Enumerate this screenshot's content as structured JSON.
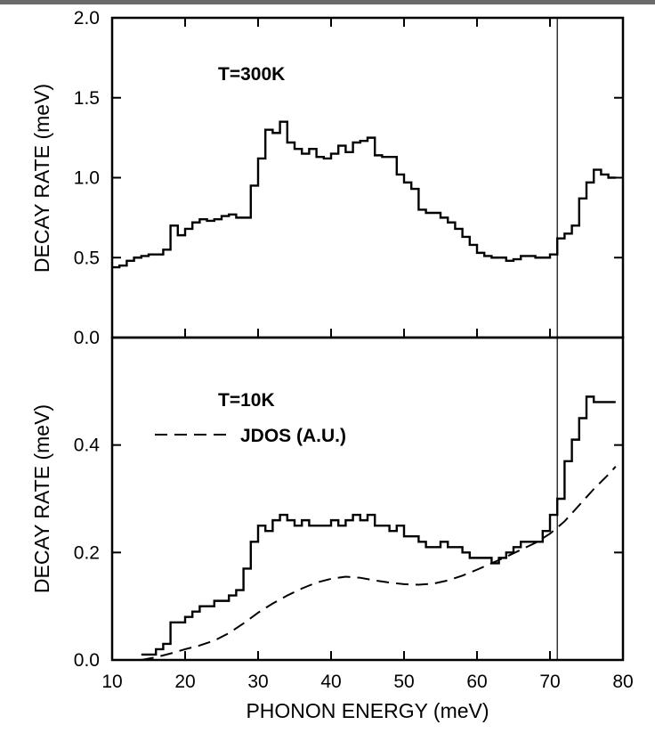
{
  "chart_data": [
    {
      "type": "line",
      "panel": "top",
      "annotation": "T=300K",
      "ylabel": "DECAY RATE (meV)",
      "xlabel": "",
      "xlim": [
        10,
        80
      ],
      "ylim": [
        0.0,
        2.0
      ],
      "yticks": [
        "0.0",
        "0.5",
        "1.0",
        "1.5",
        "2.0"
      ],
      "marker_line_x": 71,
      "series": [
        {
          "style": "step",
          "x": [
            10,
            11,
            12,
            13,
            14,
            15,
            16,
            17,
            18,
            19,
            20,
            21,
            22,
            23,
            24,
            25,
            26,
            27,
            28,
            29,
            30,
            31,
            32,
            33,
            34,
            35,
            36,
            37,
            38,
            39,
            40,
            41,
            42,
            43,
            44,
            45,
            46,
            47,
            48,
            49,
            50,
            51,
            52,
            53,
            54,
            55,
            56,
            57,
            58,
            59,
            60,
            61,
            62,
            63,
            64,
            65,
            66,
            67,
            68,
            69,
            70,
            71,
            72,
            73,
            74,
            75,
            76,
            77,
            78
          ],
          "y": [
            0.44,
            0.45,
            0.48,
            0.5,
            0.51,
            0.52,
            0.52,
            0.55,
            0.7,
            0.64,
            0.68,
            0.72,
            0.74,
            0.73,
            0.74,
            0.76,
            0.77,
            0.75,
            0.75,
            0.95,
            1.12,
            1.3,
            1.28,
            1.35,
            1.22,
            1.18,
            1.15,
            1.18,
            1.13,
            1.12,
            1.15,
            1.2,
            1.16,
            1.22,
            1.23,
            1.25,
            1.14,
            1.13,
            1.13,
            1.02,
            0.97,
            0.93,
            0.8,
            0.78,
            0.78,
            0.75,
            0.72,
            0.68,
            0.63,
            0.58,
            0.53,
            0.51,
            0.5,
            0.5,
            0.48,
            0.49,
            0.51,
            0.51,
            0.5,
            0.5,
            0.52,
            0.62,
            0.65,
            0.7,
            0.87,
            0.97,
            1.05,
            1.02,
            1.0
          ]
        }
      ]
    },
    {
      "type": "line",
      "panel": "bottom",
      "annotation": "T=10K",
      "legend_label": "JDOS (A.U.)",
      "ylabel": "DECAY RATE (meV)",
      "xlabel": "PHONON ENERGY (meV)",
      "xlim": [
        10,
        80
      ],
      "ylim": [
        0.0,
        0.6
      ],
      "yticks": [
        "0.0",
        "0.2",
        "0.4"
      ],
      "xticks": [
        "10",
        "20",
        "30",
        "40",
        "50",
        "60",
        "70",
        "80"
      ],
      "marker_line_x": 71,
      "series": [
        {
          "style": "step",
          "x": [
            14,
            15,
            16,
            17,
            18,
            19,
            20,
            21,
            22,
            23,
            24,
            25,
            26,
            27,
            28,
            29,
            30,
            31,
            32,
            33,
            34,
            35,
            36,
            37,
            38,
            39,
            40,
            41,
            42,
            43,
            44,
            45,
            46,
            47,
            48,
            49,
            50,
            51,
            52,
            53,
            54,
            55,
            56,
            57,
            58,
            59,
            60,
            61,
            62,
            63,
            64,
            65,
            66,
            67,
            68,
            69,
            70,
            71,
            72,
            73,
            74,
            75,
            76,
            77,
            78
          ],
          "y": [
            0.01,
            0.01,
            0.02,
            0.03,
            0.07,
            0.07,
            0.08,
            0.09,
            0.1,
            0.1,
            0.11,
            0.11,
            0.12,
            0.13,
            0.17,
            0.22,
            0.25,
            0.24,
            0.26,
            0.27,
            0.26,
            0.25,
            0.26,
            0.25,
            0.25,
            0.25,
            0.26,
            0.25,
            0.26,
            0.27,
            0.26,
            0.27,
            0.25,
            0.25,
            0.24,
            0.25,
            0.23,
            0.23,
            0.22,
            0.21,
            0.21,
            0.22,
            0.21,
            0.21,
            0.2,
            0.19,
            0.19,
            0.19,
            0.18,
            0.19,
            0.2,
            0.21,
            0.22,
            0.22,
            0.22,
            0.24,
            0.27,
            0.3,
            0.37,
            0.41,
            0.45,
            0.49,
            0.48,
            0.48,
            0.48
          ]
        },
        {
          "name": "JDOS (A.U.)",
          "style": "dashed",
          "x": [
            14,
            16,
            18,
            20,
            22,
            24,
            26,
            28,
            30,
            32,
            34,
            36,
            38,
            40,
            42,
            44,
            46,
            48,
            50,
            52,
            54,
            56,
            58,
            60,
            62,
            64,
            66,
            68,
            70,
            72,
            74,
            76,
            78,
            79
          ],
          "y": [
            0.0,
            0.005,
            0.012,
            0.02,
            0.027,
            0.036,
            0.05,
            0.068,
            0.088,
            0.105,
            0.12,
            0.133,
            0.144,
            0.151,
            0.155,
            0.153,
            0.148,
            0.144,
            0.141,
            0.14,
            0.142,
            0.148,
            0.157,
            0.168,
            0.18,
            0.192,
            0.205,
            0.218,
            0.235,
            0.258,
            0.288,
            0.318,
            0.345,
            0.36
          ]
        }
      ]
    }
  ]
}
